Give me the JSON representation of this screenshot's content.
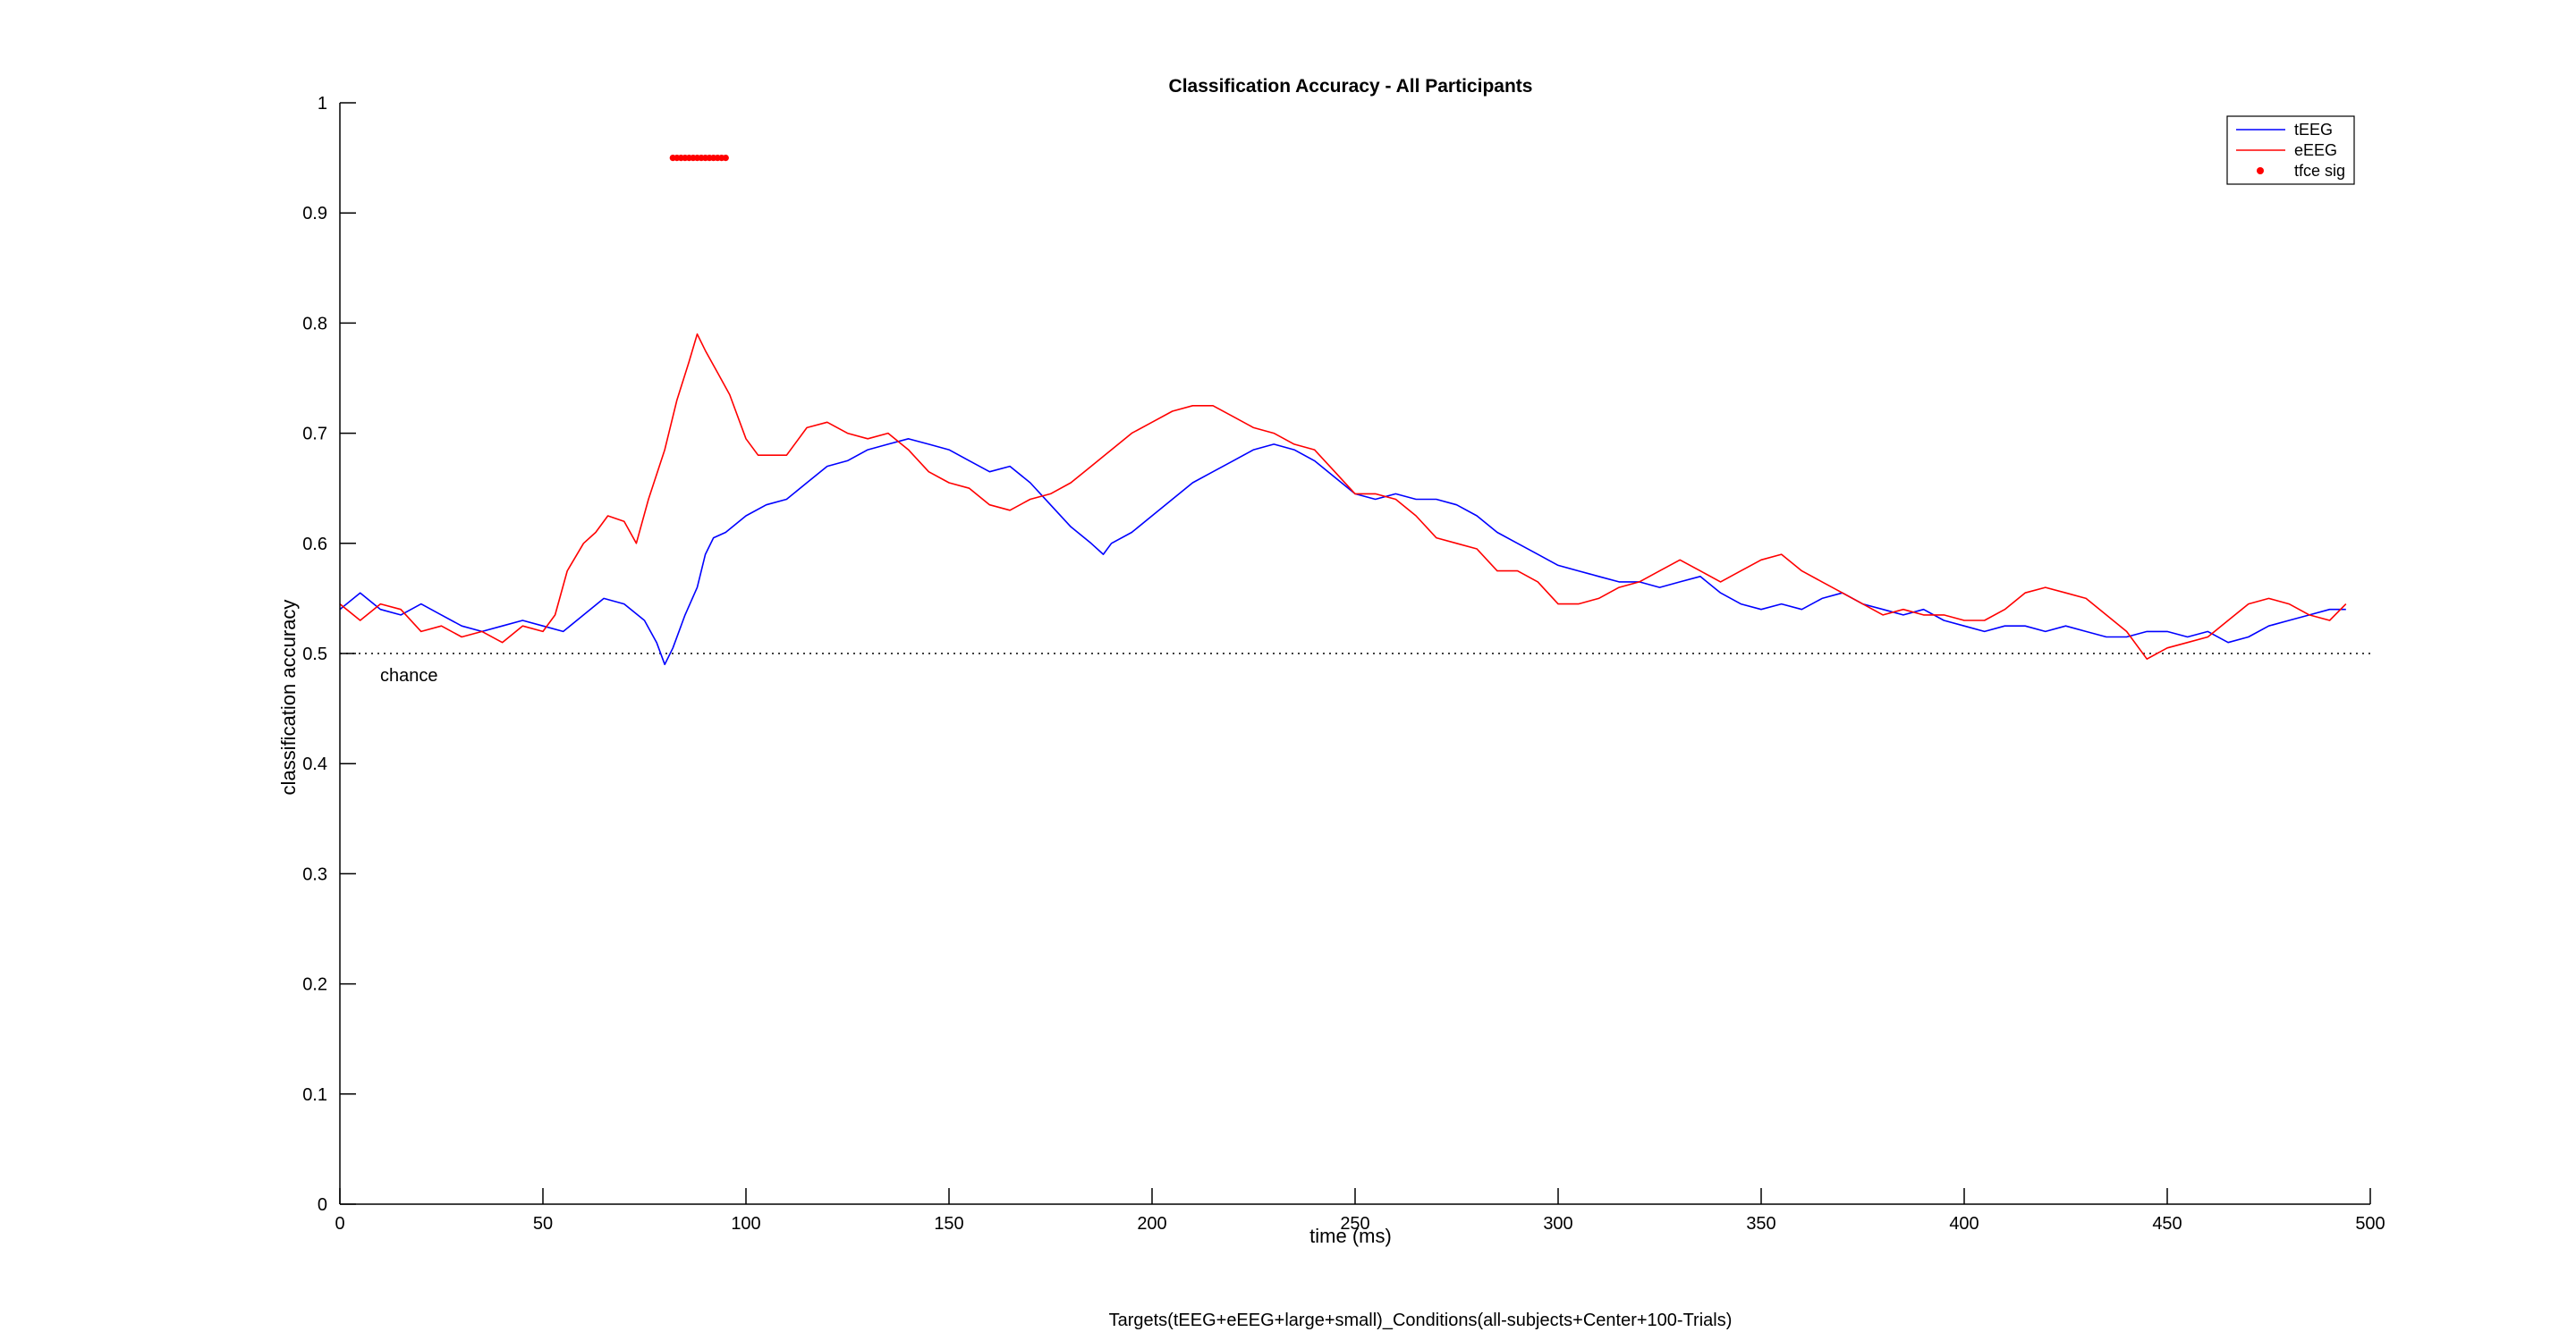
{
  "chart_data": {
    "type": "line",
    "title": "Classification Accuracy - All Participants",
    "xlabel": "time (ms)",
    "ylabel": "classification accuracy",
    "xlim": [
      0,
      500
    ],
    "ylim": [
      0,
      1
    ],
    "xticks": [
      0,
      50,
      100,
      150,
      200,
      250,
      300,
      350,
      400,
      450,
      500
    ],
    "yticks": [
      0,
      0.1,
      0.2,
      0.3,
      0.4,
      0.5,
      0.6,
      0.7,
      0.8,
      0.9,
      1
    ],
    "grid": false,
    "legend_position": "top-right",
    "chance_level": 0.5,
    "chance_label": "chance",
    "series": [
      {
        "name": "tEEG",
        "color": "#0000ff",
        "x": [
          0,
          5,
          10,
          15,
          20,
          25,
          30,
          35,
          40,
          45,
          50,
          55,
          60,
          65,
          70,
          75,
          78,
          80,
          82,
          85,
          88,
          90,
          92,
          95,
          100,
          105,
          110,
          115,
          120,
          125,
          130,
          135,
          140,
          145,
          150,
          155,
          160,
          165,
          170,
          175,
          180,
          185,
          188,
          190,
          195,
          200,
          205,
          210,
          215,
          220,
          225,
          230,
          235,
          240,
          245,
          250,
          255,
          260,
          265,
          270,
          275,
          280,
          285,
          290,
          295,
          300,
          305,
          310,
          315,
          320,
          325,
          330,
          335,
          340,
          345,
          350,
          355,
          360,
          365,
          370,
          375,
          380,
          385,
          390,
          395,
          400,
          405,
          410,
          415,
          420,
          425,
          430,
          435,
          440,
          445,
          450,
          455,
          460,
          465,
          470,
          475,
          480,
          485,
          490,
          494
        ],
        "y": [
          0.54,
          0.555,
          0.54,
          0.535,
          0.545,
          0.535,
          0.525,
          0.52,
          0.525,
          0.53,
          0.525,
          0.52,
          0.535,
          0.55,
          0.545,
          0.53,
          0.51,
          0.49,
          0.505,
          0.535,
          0.56,
          0.59,
          0.605,
          0.61,
          0.625,
          0.635,
          0.64,
          0.655,
          0.67,
          0.675,
          0.685,
          0.69,
          0.695,
          0.69,
          0.685,
          0.675,
          0.665,
          0.67,
          0.655,
          0.635,
          0.615,
          0.6,
          0.59,
          0.6,
          0.61,
          0.625,
          0.64,
          0.655,
          0.665,
          0.675,
          0.685,
          0.69,
          0.685,
          0.675,
          0.66,
          0.645,
          0.64,
          0.645,
          0.64,
          0.64,
          0.635,
          0.625,
          0.61,
          0.6,
          0.59,
          0.58,
          0.575,
          0.57,
          0.565,
          0.565,
          0.56,
          0.565,
          0.57,
          0.555,
          0.545,
          0.54,
          0.545,
          0.54,
          0.55,
          0.555,
          0.545,
          0.54,
          0.535,
          0.54,
          0.53,
          0.525,
          0.52,
          0.525,
          0.525,
          0.52,
          0.525,
          0.52,
          0.515,
          0.515,
          0.52,
          0.52,
          0.515,
          0.52,
          0.51,
          0.515,
          0.525,
          0.53,
          0.535,
          0.54,
          0.54
        ]
      },
      {
        "name": "eEEG",
        "color": "#ff0000",
        "x": [
          0,
          5,
          10,
          15,
          20,
          25,
          30,
          35,
          40,
          45,
          50,
          53,
          56,
          60,
          63,
          66,
          70,
          73,
          76,
          80,
          83,
          86,
          88,
          90,
          93,
          96,
          100,
          103,
          106,
          110,
          115,
          120,
          125,
          130,
          135,
          140,
          145,
          150,
          155,
          160,
          165,
          170,
          175,
          180,
          185,
          190,
          195,
          200,
          205,
          210,
          215,
          220,
          225,
          230,
          235,
          240,
          245,
          250,
          255,
          260,
          265,
          270,
          275,
          280,
          285,
          290,
          295,
          300,
          305,
          310,
          315,
          320,
          325,
          330,
          335,
          340,
          345,
          350,
          355,
          360,
          365,
          370,
          375,
          380,
          385,
          390,
          395,
          400,
          405,
          410,
          415,
          420,
          425,
          430,
          435,
          440,
          445,
          450,
          455,
          460,
          465,
          470,
          475,
          480,
          485,
          490,
          494
        ],
        "y": [
          0.545,
          0.53,
          0.545,
          0.54,
          0.52,
          0.525,
          0.515,
          0.52,
          0.51,
          0.525,
          0.52,
          0.535,
          0.575,
          0.6,
          0.61,
          0.625,
          0.62,
          0.6,
          0.64,
          0.685,
          0.73,
          0.765,
          0.79,
          0.775,
          0.755,
          0.735,
          0.695,
          0.68,
          0.68,
          0.68,
          0.705,
          0.71,
          0.7,
          0.695,
          0.7,
          0.685,
          0.665,
          0.655,
          0.65,
          0.635,
          0.63,
          0.64,
          0.645,
          0.655,
          0.67,
          0.685,
          0.7,
          0.71,
          0.72,
          0.725,
          0.725,
          0.715,
          0.705,
          0.7,
          0.69,
          0.685,
          0.665,
          0.645,
          0.645,
          0.64,
          0.625,
          0.605,
          0.6,
          0.595,
          0.575,
          0.575,
          0.565,
          0.545,
          0.545,
          0.55,
          0.56,
          0.565,
          0.575,
          0.585,
          0.575,
          0.565,
          0.575,
          0.585,
          0.59,
          0.575,
          0.565,
          0.555,
          0.545,
          0.535,
          0.54,
          0.535,
          0.535,
          0.53,
          0.53,
          0.54,
          0.555,
          0.56,
          0.555,
          0.55,
          0.535,
          0.52,
          0.495,
          0.505,
          0.51,
          0.515,
          0.53,
          0.545,
          0.55,
          0.545,
          0.535,
          0.53,
          0.545
        ]
      }
    ],
    "significance": {
      "name": "tfce sig",
      "color": "#ff0000",
      "y": 0.95,
      "x_start": 82,
      "x_end": 95
    },
    "footnote": "Targets(tEEG+eEEG+large+small)_Conditions(all-subjects+Center+100-Trials)"
  }
}
